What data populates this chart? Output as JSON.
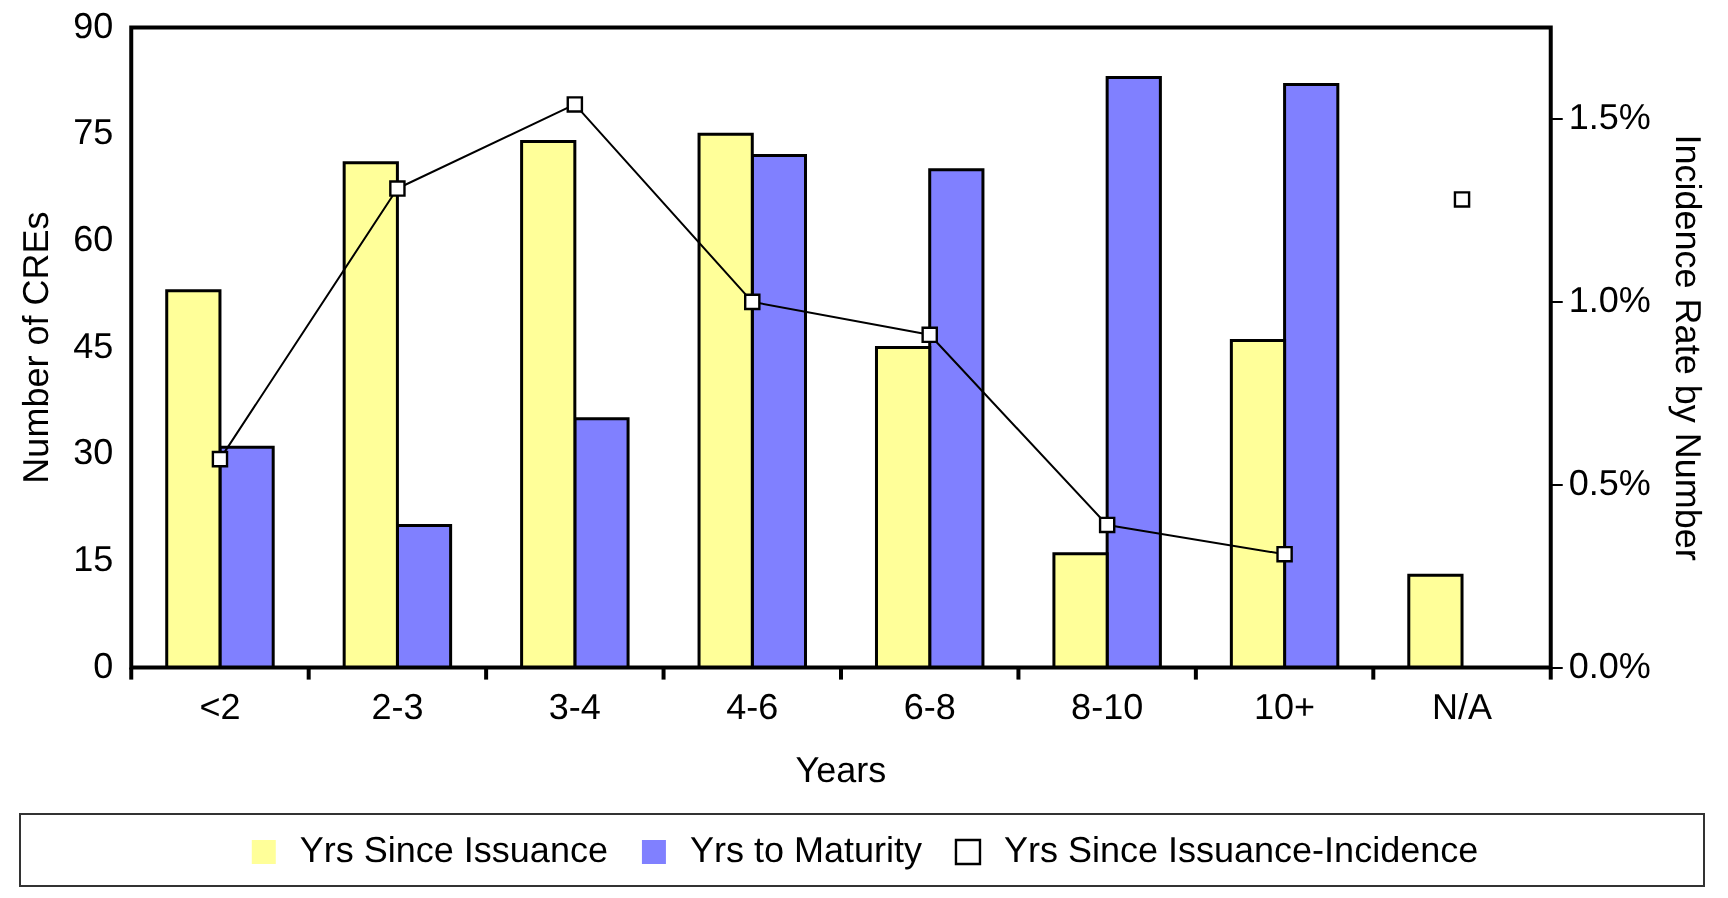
{
  "chart_data": {
    "type": "bar",
    "xlabel": "Years",
    "ylabel": "Number of CREs",
    "y2label": "Incidence Rate by Number",
    "categories": [
      "<2",
      "2-3",
      "3-4",
      "4-6",
      "6-8",
      "8-10",
      "10+",
      "N/A"
    ],
    "series": [
      {
        "name": "Yrs Since Issuance",
        "color": "#ffff99",
        "values": [
          53,
          71,
          74,
          75,
          45,
          16,
          46,
          13
        ]
      },
      {
        "name": "Yrs to Maturity",
        "color": "#8080ff",
        "values": [
          31,
          20,
          35,
          72,
          70,
          83,
          82,
          null
        ]
      },
      {
        "name": "Yrs Since Issuance-Incidence",
        "type": "line",
        "axis": "y2",
        "color": "#000000",
        "values": [
          0.57,
          1.31,
          1.54,
          1.0,
          0.91,
          0.39,
          0.31,
          null
        ]
      },
      {
        "type": "scatter",
        "axis": "y2",
        "color": "#000000",
        "x": [
          "N/A"
        ],
        "values": [
          1.28
        ]
      }
    ],
    "ylim": [
      0,
      90
    ],
    "yticks": [
      0,
      15,
      30,
      45,
      60,
      75,
      90
    ],
    "y2lim": [
      0,
      1.75
    ],
    "y2ticks": [
      {
        "value": 0,
        "label": "0.0%"
      },
      {
        "value": 0.5,
        "label": "0.5%"
      },
      {
        "value": 1.0,
        "label": "1.0%"
      },
      {
        "value": 1.5,
        "label": "1.5%"
      }
    ],
    "marker": "square",
    "legend": "bottom",
    "grid": false
  }
}
